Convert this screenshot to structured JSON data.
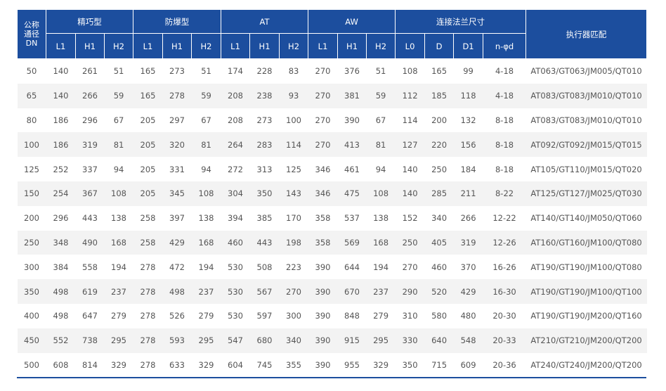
{
  "table": {
    "dn_header": [
      "公称",
      "通径",
      "DN"
    ],
    "groups": [
      {
        "label": "精巧型",
        "columns": [
          "L1",
          "H1",
          "H2"
        ]
      },
      {
        "label": "防爆型",
        "columns": [
          "L1",
          "H1",
          "H2"
        ]
      },
      {
        "label": "AT",
        "columns": [
          "L1",
          "H1",
          "H2"
        ]
      },
      {
        "label": "AW",
        "columns": [
          "L1",
          "H1",
          "H2"
        ]
      },
      {
        "label": "连接法兰尺寸",
        "columns": [
          "L0",
          "D",
          "D1",
          "n-φd"
        ]
      }
    ],
    "actuator_header": "执行器匹配",
    "rows": [
      [
        50,
        140,
        261,
        51,
        165,
        273,
        51,
        174,
        228,
        83,
        270,
        376,
        51,
        108,
        165,
        99,
        "4-18",
        "AT063/GT063/JM005/QT010"
      ],
      [
        65,
        140,
        266,
        59,
        165,
        278,
        59,
        208,
        238,
        93,
        270,
        381,
        59,
        112,
        185,
        118,
        "4-18",
        "AT083/GT083/JM010/QT010"
      ],
      [
        80,
        186,
        296,
        67,
        205,
        297,
        67,
        208,
        273,
        100,
        270,
        390,
        67,
        114,
        200,
        132,
        "8-18",
        "AT083/GT083/JM010/QT010"
      ],
      [
        100,
        186,
        319,
        81,
        205,
        320,
        81,
        264,
        283,
        114,
        270,
        413,
        81,
        127,
        220,
        156,
        "8-18",
        "AT092/GT092/JM015/QT015"
      ],
      [
        125,
        252,
        337,
        94,
        205,
        331,
        94,
        272,
        313,
        125,
        346,
        461,
        94,
        140,
        250,
        184,
        "8-18",
        "AT105/GT110/JM015/QT020"
      ],
      [
        150,
        254,
        367,
        108,
        205,
        345,
        108,
        304,
        350,
        143,
        346,
        475,
        108,
        140,
        285,
        211,
        "8-22",
        "AT125/GT127/JM025/QT030"
      ],
      [
        200,
        296,
        443,
        138,
        258,
        397,
        138,
        394,
        385,
        170,
        358,
        537,
        138,
        152,
        340,
        266,
        "12-22",
        "AT140/GT140/JM050/QT060"
      ],
      [
        250,
        348,
        490,
        168,
        258,
        429,
        168,
        460,
        443,
        198,
        358,
        569,
        168,
        250,
        405,
        319,
        "12-26",
        "AT160/GT160/JM100/QT080"
      ],
      [
        300,
        384,
        558,
        194,
        278,
        472,
        194,
        530,
        508,
        223,
        390,
        644,
        194,
        270,
        460,
        370,
        "16-26",
        "AT190/GT190/JM100/QT080"
      ],
      [
        350,
        498,
        619,
        237,
        278,
        498,
        237,
        530,
        567,
        270,
        390,
        670,
        237,
        290,
        520,
        429,
        "16-30",
        "AT190/GT190/JM100/QT100"
      ],
      [
        400,
        498,
        647,
        279,
        278,
        526,
        279,
        530,
        597,
        300,
        390,
        848,
        279,
        310,
        580,
        480,
        "20-30",
        "AT190/GT190/JM200/QT160"
      ],
      [
        450,
        552,
        738,
        295,
        278,
        593,
        295,
        547,
        680,
        340,
        390,
        915,
        295,
        330,
        640,
        548,
        "20-33",
        "AT210/GT210/JM200/QT200"
      ],
      [
        500,
        608,
        814,
        329,
        278,
        633,
        329,
        604,
        745,
        355,
        390,
        955,
        329,
        350,
        715,
        609,
        "20-36",
        "AT240/GT240/JM200/QT200"
      ]
    ]
  }
}
